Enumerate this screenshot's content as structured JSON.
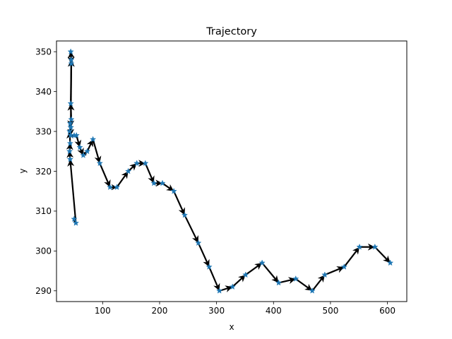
{
  "chart_data": {
    "type": "line",
    "title": "Trajectory",
    "xlabel": "x",
    "ylabel": "y",
    "xlim": [
      19,
      634
    ],
    "ylim": [
      287.3,
      352.7
    ],
    "xticks": [
      100,
      200,
      300,
      400,
      500,
      600
    ],
    "yticks": [
      290,
      300,
      310,
      320,
      330,
      340,
      350
    ],
    "grid": false,
    "legend": "none",
    "marker": "star",
    "marker_color": "#1f77b4",
    "arrow_color": "#000000",
    "points": [
      [
        50,
        308
      ],
      [
        53,
        307
      ],
      [
        43,
        323
      ],
      [
        42,
        325
      ],
      [
        43,
        327
      ],
      [
        42,
        330
      ],
      [
        44,
        331
      ],
      [
        43,
        332
      ],
      [
        45,
        333
      ],
      [
        44,
        337
      ],
      [
        45,
        348
      ],
      [
        44,
        350
      ],
      [
        45,
        347
      ],
      [
        44,
        331
      ],
      [
        44,
        329
      ],
      [
        50,
        329
      ],
      [
        54,
        329
      ],
      [
        60,
        326
      ],
      [
        66,
        324
      ],
      [
        73,
        325
      ],
      [
        83,
        328
      ],
      [
        95,
        322
      ],
      [
        113,
        316
      ],
      [
        125,
        316
      ],
      [
        145,
        320
      ],
      [
        160,
        322
      ],
      [
        175,
        322
      ],
      [
        190,
        317
      ],
      [
        205,
        317
      ],
      [
        225,
        315
      ],
      [
        244,
        309
      ],
      [
        268,
        302
      ],
      [
        287,
        296
      ],
      [
        305,
        290
      ],
      [
        328,
        291
      ],
      [
        351,
        294
      ],
      [
        380,
        297
      ],
      [
        409,
        292
      ],
      [
        439,
        293
      ],
      [
        468,
        290
      ],
      [
        490,
        294
      ],
      [
        524,
        296
      ],
      [
        551,
        301
      ],
      [
        578,
        301
      ],
      [
        605,
        297
      ]
    ]
  }
}
